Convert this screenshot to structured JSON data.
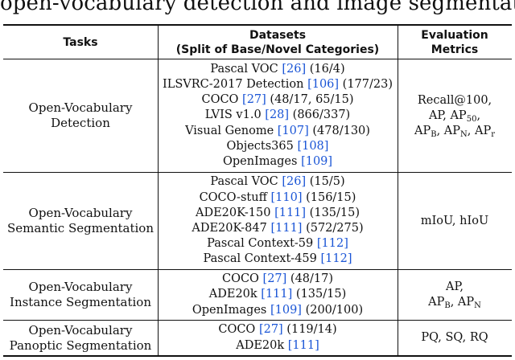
{
  "caption_tail": "open-vocabulary detection and image segmentation.",
  "header": {
    "tasks": "Tasks",
    "datasets_line1": "Datasets",
    "datasets_line2": "(Split of Base/Novel Categories)",
    "metrics_line1": "Evaluation",
    "metrics_line2": "Metrics"
  },
  "rows": [
    {
      "task": [
        "Open-Vocabulary",
        "Detection"
      ],
      "datasets": [
        {
          "name": "Pascal VOC ",
          "cite": "[26]",
          "split": " (16/4)"
        },
        {
          "name": "ILSVRC-2017 Detection ",
          "cite": "[106]",
          "split": " (177/23)"
        },
        {
          "name": "COCO ",
          "cite": "[27]",
          "split": " (48/17, 65/15)"
        },
        {
          "name": "LVIS v1.0 ",
          "cite": "[28]",
          "split": " (866/337)"
        },
        {
          "name": "Visual Genome ",
          "cite": "[107]",
          "split": " (478/130)"
        },
        {
          "name": "Objects365 ",
          "cite": "[108]",
          "split": ""
        },
        {
          "name": "OpenImages ",
          "cite": "[109]",
          "split": ""
        }
      ],
      "metrics_text": {
        "l1": "Recall@100,",
        "l2_a": "AP, AP",
        "l2_sub": "50",
        "l2_b": ",",
        "l3_a": "AP",
        "l3_sub1": "B",
        "l3_b": ", AP",
        "l3_sub2": "N",
        "l3_c": ", AP",
        "l3_sub3": "r"
      }
    },
    {
      "task": [
        "Open-Vocabulary",
        "Semantic Segmentation"
      ],
      "datasets": [
        {
          "name": "Pascal VOC ",
          "cite": "[26]",
          "split": " (15/5)"
        },
        {
          "name": "COCO-stuff ",
          "cite": "[110]",
          "split": " (156/15)"
        },
        {
          "name": "ADE20K-150 ",
          "cite": "[111]",
          "split": " (135/15)"
        },
        {
          "name": "ADE20K-847 ",
          "cite": "[111]",
          "split": " (572/275)"
        },
        {
          "name": "Pascal Context-59 ",
          "cite": "[112]",
          "split": ""
        },
        {
          "name": "Pascal Context-459 ",
          "cite": "[112]",
          "split": ""
        }
      ],
      "metrics_text": {
        "l1": "mIoU, hIoU"
      }
    },
    {
      "task": [
        "Open-Vocabulary",
        "Instance Segmentation"
      ],
      "datasets": [
        {
          "name": "COCO ",
          "cite": "[27]",
          "split": " (48/17)"
        },
        {
          "name": "ADE20k ",
          "cite": "[111]",
          "split": " (135/15)"
        },
        {
          "name": "OpenImages ",
          "cite": "[109]",
          "split": " (200/100)"
        }
      ],
      "metrics_text": {
        "l1": "AP,",
        "l2_a": "AP",
        "l2_sub1": "B",
        "l2_b": ", AP",
        "l2_sub2": "N"
      }
    },
    {
      "task": [
        "Open-Vocabulary",
        "Panoptic Segmentation"
      ],
      "datasets": [
        {
          "name": "COCO ",
          "cite": "[27]",
          "split": " (119/14)"
        },
        {
          "name": "ADE20k ",
          "cite": "[111]",
          "split": ""
        }
      ],
      "metrics_text": {
        "l1": "PQ, SQ, RQ"
      }
    }
  ]
}
